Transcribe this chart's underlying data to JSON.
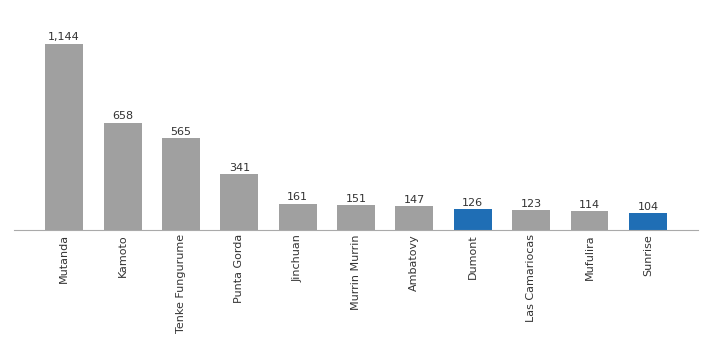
{
  "categories": [
    "Mutanda",
    "Kamoto",
    "Tenke Fungurume",
    "Punta Gorda",
    "Jinchuan",
    "Murrin Murrin",
    "Ambatovy",
    "Dumont",
    "Las Camariocas",
    "Mufulira",
    "Sunrise"
  ],
  "values": [
    1144,
    658,
    565,
    341,
    161,
    151,
    147,
    126,
    123,
    114,
    104
  ],
  "bar_colors": [
    "#a0a0a0",
    "#a0a0a0",
    "#a0a0a0",
    "#a0a0a0",
    "#a0a0a0",
    "#a0a0a0",
    "#a0a0a0",
    "#1f6eb5",
    "#a0a0a0",
    "#a0a0a0",
    "#1f6eb5"
  ],
  "value_labels": [
    "1,144",
    "658",
    "565",
    "341",
    "161",
    "151",
    "147",
    "126",
    "123",
    "114",
    "104"
  ],
  "label_fontsize": 8,
  "tick_fontsize": 8,
  "background_color": "#ffffff",
  "bar_edge_color": "none",
  "ylim": [
    0,
    1350
  ],
  "bar_width": 0.65,
  "figsize": [
    7.05,
    3.38
  ],
  "dpi": 100
}
